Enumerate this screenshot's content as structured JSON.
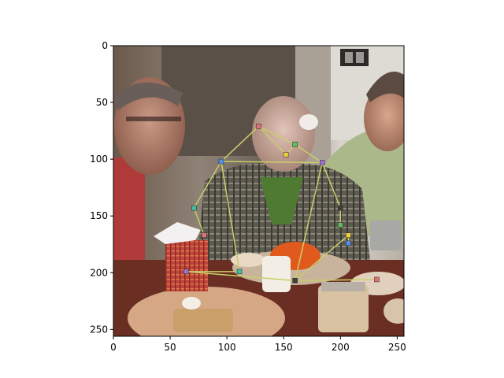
{
  "figure": {
    "x_ticks": [
      "0",
      "50",
      "100",
      "150",
      "200",
      "250"
    ],
    "y_ticks": [
      "0",
      "50",
      "100",
      "150",
      "200",
      "250"
    ],
    "xlim": [
      0,
      256
    ],
    "ylim": [
      256,
      0
    ],
    "skeleton_color": "#c8cf6a",
    "keypoint_colors": [
      "#e0707a",
      "#60c060",
      "#f0d040",
      "#5090f0",
      "#a070d0",
      "#40c0a0",
      "#404040"
    ]
  },
  "chart_data": {
    "type": "scatter",
    "title": "",
    "xlabel": "",
    "ylabel": "",
    "xlim": [
      0,
      256
    ],
    "ylim": [
      256,
      0
    ],
    "grid": false,
    "series": [
      {
        "values": [
          {
            "x": 128,
            "y": 71
          },
          {
            "x": 160,
            "y": 87
          },
          {
            "x": 152,
            "y": 96
          },
          {
            "x": 95,
            "y": 102
          },
          {
            "x": 184,
            "y": 103
          },
          {
            "x": 71,
            "y": 143
          },
          {
            "x": 200,
            "y": 143
          },
          {
            "x": 80,
            "y": 167
          },
          {
            "x": 200,
            "y": 158
          },
          {
            "x": 207,
            "y": 167
          },
          {
            "x": 207,
            "y": 174
          },
          {
            "x": 64,
            "y": 199
          },
          {
            "x": 111,
            "y": 199
          },
          {
            "x": 160,
            "y": 207
          },
          {
            "x": 232,
            "y": 206
          }
        ]
      }
    ],
    "edges": [
      [
        0,
        1
      ],
      [
        0,
        2
      ],
      [
        1,
        2
      ],
      [
        0,
        3
      ],
      [
        3,
        4
      ],
      [
        1,
        4
      ],
      [
        3,
        5
      ],
      [
        5,
        7
      ],
      [
        4,
        6
      ],
      [
        6,
        8
      ],
      [
        3,
        12
      ],
      [
        4,
        13
      ],
      [
        12,
        11
      ],
      [
        13,
        14
      ],
      [
        13,
        9
      ],
      [
        9,
        10
      ],
      [
        11,
        13
      ]
    ]
  }
}
